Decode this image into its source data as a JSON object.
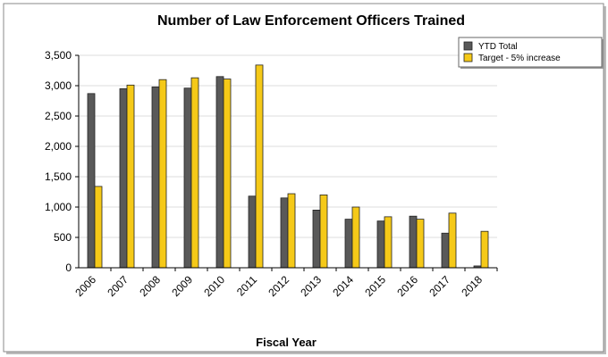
{
  "chart_data": {
    "type": "bar",
    "title": "Number of Law Enforcement Officers Trained",
    "x_label": "Fiscal Year",
    "categories": [
      "2006",
      "2007",
      "2008",
      "2009",
      "2010",
      "2011",
      "2012",
      "2013",
      "2014",
      "2015",
      "2016",
      "2017",
      "2018"
    ],
    "series": [
      {
        "name": "YTD Total",
        "color": "#595959",
        "values": [
          2870,
          2950,
          2980,
          2960,
          3150,
          1180,
          1150,
          950,
          800,
          770,
          850,
          570,
          30
        ]
      },
      {
        "name": "Target - 5% increase",
        "color": "#f5c918",
        "values": [
          1340,
          3010,
          3100,
          3130,
          3110,
          3340,
          1220,
          1200,
          1000,
          840,
          800,
          900,
          600
        ]
      }
    ],
    "ylim": [
      0,
      3500
    ],
    "yticks": [
      0,
      500,
      {
        "value": 1000,
        "label": "1,000"
      },
      {
        "value": 1500,
        "label": "1,500"
      },
      {
        "value": 2000,
        "label": "2,000"
      },
      {
        "value": 2500,
        "label": "2,500"
      },
      {
        "value": 3000,
        "label": "3,000"
      },
      {
        "value": 3500,
        "label": "3,500"
      }
    ],
    "grid": true,
    "legend": "top-right"
  }
}
